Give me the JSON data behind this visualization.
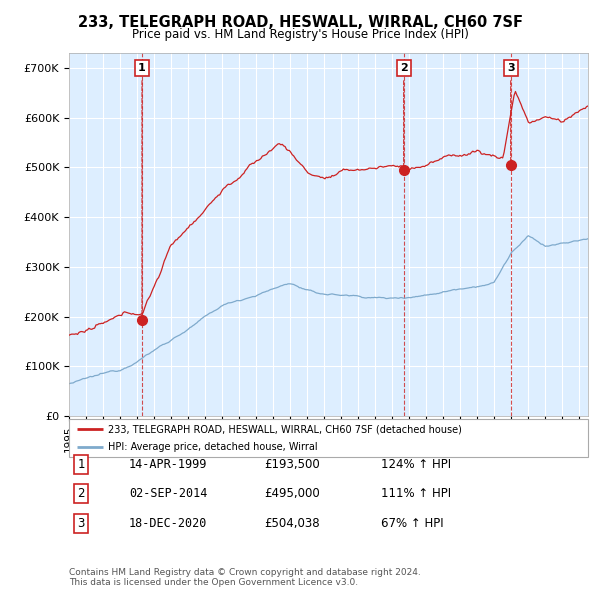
{
  "title": "233, TELEGRAPH ROAD, HESWALL, WIRRAL, CH60 7SF",
  "subtitle": "Price paid vs. HM Land Registry's House Price Index (HPI)",
  "sale_dates": [
    "1999-04-14",
    "2014-09-02",
    "2020-12-18"
  ],
  "sale_prices": [
    193500,
    495000,
    504038
  ],
  "sale_years": [
    1999.29,
    2014.67,
    2020.96
  ],
  "sale_labels": [
    "1",
    "2",
    "3"
  ],
  "legend_line1": "233, TELEGRAPH ROAD, HESWALL, WIRRAL, CH60 7SF (detached house)",
  "legend_line2": "HPI: Average price, detached house, Wirral",
  "table_rows": [
    [
      "1",
      "14-APR-1999",
      "£193,500",
      "124% ↑ HPI"
    ],
    [
      "2",
      "02-SEP-2014",
      "£495,000",
      "111% ↑ HPI"
    ],
    [
      "3",
      "18-DEC-2020",
      "£504,038",
      "67% ↑ HPI"
    ]
  ],
  "footer": "Contains HM Land Registry data © Crown copyright and database right 2024.\nThis data is licensed under the Open Government Licence v3.0.",
  "hpi_color": "#7faacc",
  "sale_color": "#cc2222",
  "bg_color": "#ddeeff",
  "ylim": [
    0,
    730000
  ],
  "yticks": [
    0,
    100000,
    200000,
    300000,
    400000,
    500000,
    600000,
    700000
  ],
  "xlim": [
    1995,
    2025.5
  ]
}
